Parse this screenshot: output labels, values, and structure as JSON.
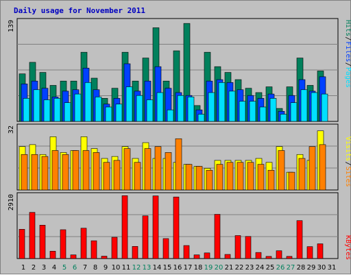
{
  "title": "Daily usage for November 2011",
  "colors": {
    "background": "#c0c0c0",
    "title": "#0000c0",
    "hits": "#00805c",
    "files": "#0040ff",
    "pages": "#00e0ff",
    "visits": "#ffff00",
    "sites": "#ff8000",
    "kbytes": "#ff0000",
    "weekend_day_label": "#00805c",
    "weekday_label": "#000000"
  },
  "chart_data": [
    {
      "type": "bar",
      "panel": "hits",
      "ymax_label": "139",
      "ylim": [
        0,
        139
      ],
      "legend": [
        {
          "name": "Pages",
          "color": "#00e0ff"
        },
        {
          "name": "Files",
          "color": "#0040ff"
        },
        {
          "name": "Hits",
          "color": "#00805c"
        }
      ],
      "categories": [
        "1",
        "2",
        "3",
        "4",
        "5",
        "6",
        "7",
        "8",
        "9",
        "10",
        "11",
        "12",
        "13",
        "14",
        "15",
        "16",
        "17",
        "18",
        "19",
        "20",
        "21",
        "22",
        "23",
        "24",
        "25",
        "26",
        "27",
        "28",
        "29",
        "30",
        "31"
      ],
      "series": [
        {
          "name": "Hits",
          "values": [
            66,
            82,
            68,
            50,
            56,
            56,
            96,
            60,
            32,
            46,
            96,
            56,
            88,
            130,
            56,
            98,
            136,
            22,
            96,
            76,
            68,
            58,
            46,
            40,
            48,
            18,
            48,
            88,
            50,
            70,
            0
          ]
        },
        {
          "name": "Files",
          "values": [
            52,
            56,
            46,
            34,
            42,
            44,
            74,
            44,
            24,
            32,
            80,
            42,
            56,
            76,
            46,
            40,
            36,
            16,
            56,
            58,
            54,
            44,
            36,
            32,
            38,
            14,
            36,
            58,
            42,
            62,
            0
          ]
        },
        {
          "name": "Pages",
          "values": [
            32,
            44,
            30,
            32,
            26,
            38,
            54,
            34,
            20,
            24,
            48,
            36,
            30,
            40,
            16,
            36,
            34,
            10,
            40,
            54,
            42,
            28,
            28,
            20,
            32,
            10,
            26,
            44,
            40,
            38,
            0
          ]
        }
      ]
    },
    {
      "type": "bar",
      "panel": "visits",
      "ymax_label": "32",
      "ylim": [
        0,
        32
      ],
      "legend": [
        {
          "name": "Sites",
          "color": "#ff8000"
        },
        {
          "name": "Visits",
          "color": "#ffff00"
        }
      ],
      "categories": [
        "1",
        "2",
        "3",
        "4",
        "5",
        "6",
        "7",
        "8",
        "9",
        "10",
        "11",
        "12",
        "13",
        "14",
        "15",
        "16",
        "17",
        "18",
        "19",
        "20",
        "21",
        "22",
        "23",
        "24",
        "25",
        "26",
        "27",
        "28",
        "29",
        "30",
        "31"
      ],
      "series": [
        {
          "name": "Visits",
          "values": [
            22,
            23,
            18,
            27,
            19,
            20,
            27,
            21,
            16,
            17,
            22,
            16,
            24,
            16,
            16,
            14,
            13,
            12,
            11,
            15,
            15,
            15,
            15,
            16,
            14,
            22,
            9,
            18,
            15,
            30,
            0
          ]
        },
        {
          "name": "Sites",
          "values": [
            18,
            18,
            17,
            20,
            18,
            20,
            20,
            19,
            14,
            15,
            21,
            14,
            21,
            22,
            19,
            26,
            13,
            12,
            10,
            13,
            14,
            14,
            14,
            13,
            10,
            20,
            9,
            16,
            22,
            23,
            0
          ]
        }
      ]
    },
    {
      "type": "bar",
      "panel": "kbytes",
      "ymax_label": "2910",
      "ylim": [
        0,
        2910
      ],
      "legend": [
        {
          "name": "KBytes",
          "color": "#ff0000"
        }
      ],
      "categories": [
        "1",
        "2",
        "3",
        "4",
        "5",
        "6",
        "7",
        "8",
        "9",
        "10",
        "11",
        "12",
        "13",
        "14",
        "15",
        "16",
        "17",
        "18",
        "19",
        "20",
        "21",
        "22",
        "23",
        "24",
        "25",
        "26",
        "27",
        "28",
        "29",
        "30",
        "31"
      ],
      "series": [
        {
          "name": "KBytes",
          "values": [
            1350,
            2130,
            1540,
            340,
            1330,
            170,
            1400,
            820,
            110,
            980,
            2900,
            560,
            1970,
            2890,
            920,
            2840,
            600,
            170,
            260,
            2040,
            190,
            1060,
            1020,
            280,
            100,
            360,
            100,
            1750,
            550,
            680,
            0
          ]
        }
      ]
    }
  ],
  "days": [
    {
      "label": "1",
      "weekend": false
    },
    {
      "label": "2",
      "weekend": false
    },
    {
      "label": "3",
      "weekend": false
    },
    {
      "label": "4",
      "weekend": false
    },
    {
      "label": "5",
      "weekend": true
    },
    {
      "label": "6",
      "weekend": true
    },
    {
      "label": "7",
      "weekend": false
    },
    {
      "label": "8",
      "weekend": false
    },
    {
      "label": "9",
      "weekend": false
    },
    {
      "label": "10",
      "weekend": false
    },
    {
      "label": "11",
      "weekend": false
    },
    {
      "label": "12",
      "weekend": true
    },
    {
      "label": "13",
      "weekend": true
    },
    {
      "label": "14",
      "weekend": false
    },
    {
      "label": "15",
      "weekend": false
    },
    {
      "label": "16",
      "weekend": false
    },
    {
      "label": "17",
      "weekend": false
    },
    {
      "label": "18",
      "weekend": false
    },
    {
      "label": "19",
      "weekend": true
    },
    {
      "label": "20",
      "weekend": true
    },
    {
      "label": "21",
      "weekend": false
    },
    {
      "label": "22",
      "weekend": false
    },
    {
      "label": "23",
      "weekend": false
    },
    {
      "label": "24",
      "weekend": false
    },
    {
      "label": "25",
      "weekend": false
    },
    {
      "label": "26",
      "weekend": true
    },
    {
      "label": "27",
      "weekend": true
    },
    {
      "label": "28",
      "weekend": false
    },
    {
      "label": "29",
      "weekend": false
    },
    {
      "label": "30",
      "weekend": false
    },
    {
      "label": "31",
      "weekend": false
    }
  ]
}
